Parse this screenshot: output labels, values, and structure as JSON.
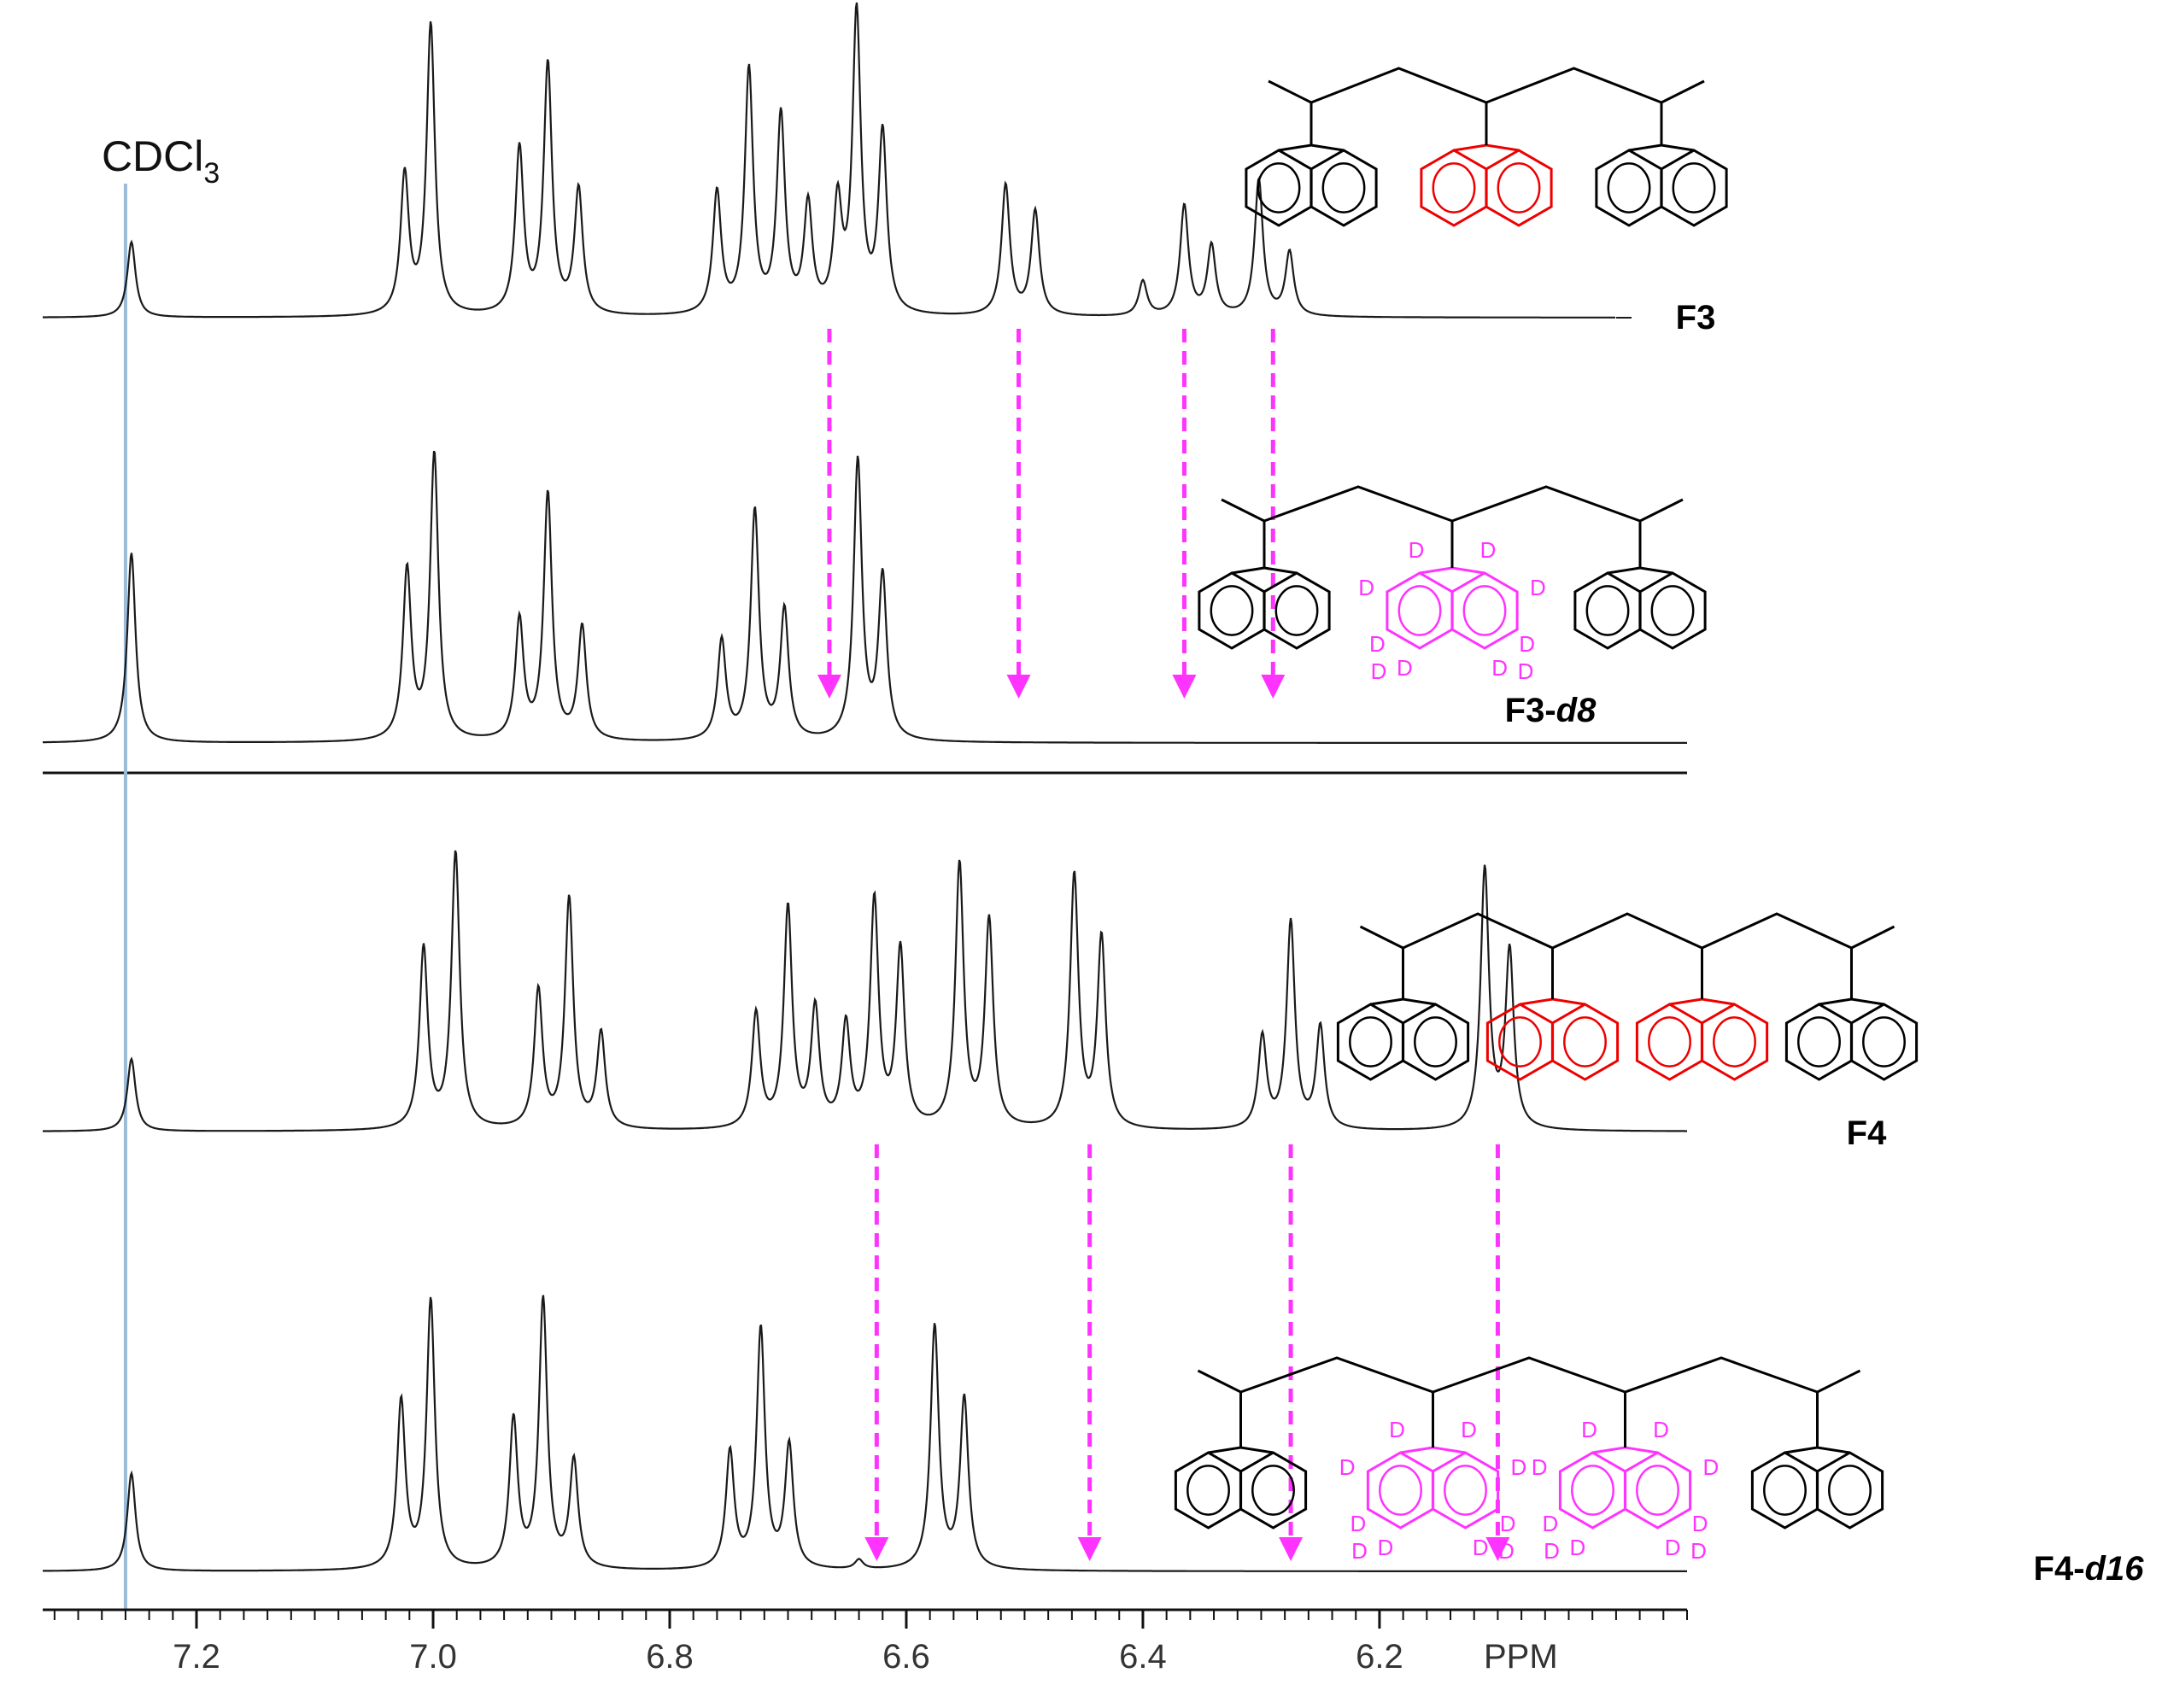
{
  "chart_data": {
    "type": "line",
    "title": "",
    "xlabel": "PPM",
    "ylabel": "",
    "xlim": [
      7.33,
      5.94
    ],
    "x_reversed": true,
    "grid": false,
    "reference_line": {
      "label": "CDCl",
      "subscript": "3",
      "ppm": 7.26,
      "color": "#9bbbd9"
    },
    "ticks": [
      {
        "value": 7.2,
        "label": "7.2"
      },
      {
        "value": 7.0,
        "label": "7.0"
      },
      {
        "value": 6.8,
        "label": "6.8"
      },
      {
        "value": 6.6,
        "label": "6.6"
      },
      {
        "value": 6.4,
        "label": "6.4"
      },
      {
        "value": 6.2,
        "label": "6.2"
      }
    ],
    "minor_tick_step": 0.02,
    "series": [
      {
        "name": "F3",
        "label_main": "F3",
        "label_suffix": "",
        "ppm_range": [
          7.33,
          6.0
        ],
        "peaks": [
          {
            "ppm": 7.255,
            "h": 0.26
          },
          {
            "ppm": 7.024,
            "h": 0.48
          },
          {
            "ppm": 7.002,
            "h": 1.0
          },
          {
            "ppm": 6.927,
            "h": 0.57
          },
          {
            "ppm": 6.903,
            "h": 0.86
          },
          {
            "ppm": 6.877,
            "h": 0.43
          },
          {
            "ppm": 6.76,
            "h": 0.42
          },
          {
            "ppm": 6.733,
            "h": 0.84
          },
          {
            "ppm": 6.706,
            "h": 0.68
          },
          {
            "ppm": 6.683,
            "h": 0.37
          },
          {
            "ppm": 6.658,
            "h": 0.37
          },
          {
            "ppm": 6.642,
            "h": 1.03
          },
          {
            "ppm": 6.62,
            "h": 0.62
          },
          {
            "ppm": 6.516,
            "h": 0.45
          },
          {
            "ppm": 6.491,
            "h": 0.36
          },
          {
            "ppm": 6.4,
            "h": 0.12
          },
          {
            "ppm": 6.365,
            "h": 0.38
          },
          {
            "ppm": 6.342,
            "h": 0.24
          },
          {
            "ppm": 6.302,
            "h": 0.47
          },
          {
            "ppm": 6.276,
            "h": 0.22
          }
        ]
      },
      {
        "name": "F3-d8",
        "label_main": "F3-",
        "label_suffix": "d8",
        "ppm_range": [
          7.33,
          5.94
        ],
        "peaks": [
          {
            "ppm": 7.255,
            "h": 0.57
          },
          {
            "ppm": 7.022,
            "h": 0.51
          },
          {
            "ppm": 6.999,
            "h": 0.86
          },
          {
            "ppm": 6.927,
            "h": 0.36
          },
          {
            "ppm": 6.903,
            "h": 0.74
          },
          {
            "ppm": 6.874,
            "h": 0.34
          },
          {
            "ppm": 6.756,
            "h": 0.3
          },
          {
            "ppm": 6.728,
            "h": 0.69
          },
          {
            "ppm": 6.703,
            "h": 0.39
          },
          {
            "ppm": 6.641,
            "h": 0.84
          },
          {
            "ppm": 6.62,
            "h": 0.49
          }
        ]
      },
      {
        "name": "F4",
        "label_main": "F4",
        "label_suffix": "",
        "ppm_range": [
          7.33,
          5.94
        ],
        "peaks": [
          {
            "ppm": 7.255,
            "h": 0.22
          },
          {
            "ppm": 7.008,
            "h": 0.55
          },
          {
            "ppm": 6.981,
            "h": 0.84
          },
          {
            "ppm": 6.911,
            "h": 0.42
          },
          {
            "ppm": 6.885,
            "h": 0.7
          },
          {
            "ppm": 6.858,
            "h": 0.29
          },
          {
            "ppm": 6.727,
            "h": 0.35
          },
          {
            "ppm": 6.7,
            "h": 0.67
          },
          {
            "ppm": 6.677,
            "h": 0.36
          },
          {
            "ppm": 6.651,
            "h": 0.31
          },
          {
            "ppm": 6.627,
            "h": 0.69
          },
          {
            "ppm": 6.605,
            "h": 0.54
          },
          {
            "ppm": 6.555,
            "h": 0.8
          },
          {
            "ppm": 6.53,
            "h": 0.63
          },
          {
            "ppm": 6.458,
            "h": 0.77
          },
          {
            "ppm": 6.435,
            "h": 0.58
          },
          {
            "ppm": 6.299,
            "h": 0.28
          },
          {
            "ppm": 6.275,
            "h": 0.63
          },
          {
            "ppm": 6.25,
            "h": 0.31
          },
          {
            "ppm": 6.111,
            "h": 0.79
          },
          {
            "ppm": 6.09,
            "h": 0.54
          }
        ]
      },
      {
        "name": "F4-d16",
        "label_main": "F4-",
        "label_suffix": "d16",
        "ppm_range": [
          7.33,
          5.94
        ],
        "peaks": [
          {
            "ppm": 7.255,
            "h": 0.31
          },
          {
            "ppm": 7.027,
            "h": 0.53
          },
          {
            "ppm": 7.002,
            "h": 0.85
          },
          {
            "ppm": 6.932,
            "h": 0.47
          },
          {
            "ppm": 6.907,
            "h": 0.85
          },
          {
            "ppm": 6.881,
            "h": 0.34
          },
          {
            "ppm": 6.749,
            "h": 0.37
          },
          {
            "ppm": 6.723,
            "h": 0.76
          },
          {
            "ppm": 6.699,
            "h": 0.39
          },
          {
            "ppm": 6.64,
            "h": 0.03
          },
          {
            "ppm": 6.576,
            "h": 0.77
          },
          {
            "ppm": 6.551,
            "h": 0.54
          }
        ]
      }
    ],
    "arrows": [
      {
        "series": "F3",
        "ppm": 6.665,
        "color": "#ff33ff"
      },
      {
        "series": "F3",
        "ppm": 6.505,
        "color": "#ff33ff"
      },
      {
        "series": "F3",
        "ppm": 6.365,
        "color": "#ff33ff"
      },
      {
        "series": "F3",
        "ppm": 6.29,
        "color": "#ff33ff"
      },
      {
        "series": "F4",
        "ppm": 6.625,
        "color": "#ff33ff"
      },
      {
        "series": "F4",
        "ppm": 6.445,
        "color": "#ff33ff"
      },
      {
        "series": "F4",
        "ppm": 6.275,
        "color": "#ff33ff"
      },
      {
        "series": "F4",
        "ppm": 6.1,
        "color": "#ff33ff"
      }
    ],
    "structures": [
      {
        "name": "F3",
        "units": [
          "plain",
          "red",
          "plain"
        ]
      },
      {
        "name": "F3-d8",
        "units": [
          "plain",
          "deuterated",
          "plain"
        ]
      },
      {
        "name": "F4",
        "units": [
          "plain",
          "red",
          "red",
          "plain"
        ]
      },
      {
        "name": "F4-d16",
        "units": [
          "plain",
          "deuterated",
          "deuterated",
          "plain"
        ]
      }
    ],
    "deuterium_label": "D",
    "colors": {
      "spectrum": "#1a1a1a",
      "arrow": "#ff33ff",
      "red_unit": "#ee0000",
      "deuterated_unit": "#ff33ff",
      "reference": "#9bbbd9"
    }
  }
}
